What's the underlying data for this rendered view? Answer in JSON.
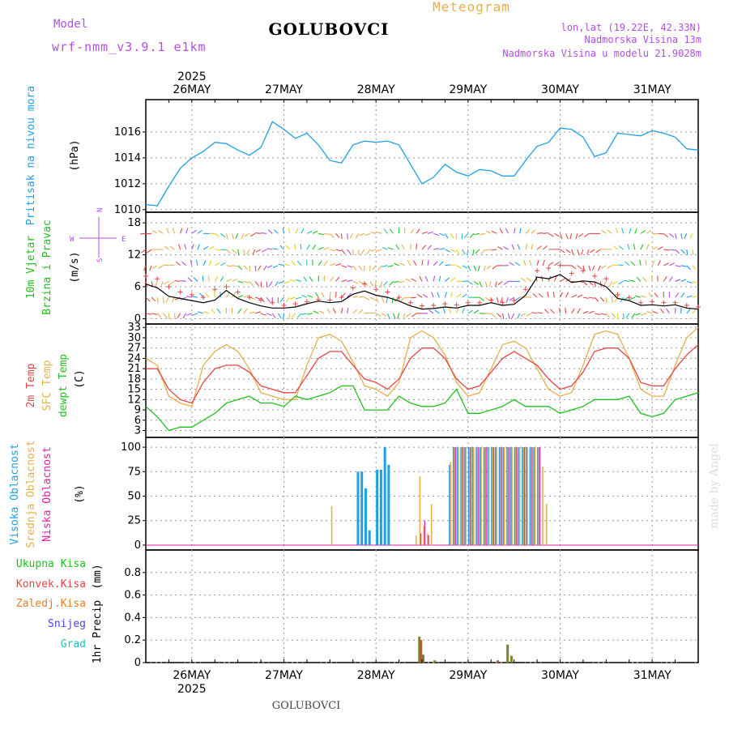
{
  "header": {
    "model_label": "Model",
    "model_name": "wrf-nmm_v3.9.1 e1km",
    "station": "GOLUBOVCI",
    "meteogram_label": "Meteogram",
    "lonlat": "lon,lat (19.22E, 42.33N)",
    "elevation": "Nadmorska Visina 13m",
    "model_elevation": "Nadmorska Visina u modelu 21.9028m",
    "footer_station": "GOLUBOVCI",
    "credit": "made by Angel"
  },
  "colors": {
    "purple": "#b44ee6",
    "gold": "#e6b04e",
    "cyan": "#1ea0e6",
    "green": "#20c020",
    "red": "#e64646",
    "orange": "#e67e22",
    "blue": "#4646e6",
    "teal": "#20c0c0",
    "magenta": "#e020a0"
  },
  "chart_data": [
    {
      "type": "line",
      "panel": "pressure",
      "ylabel_left": "Pritisak na nivou mora",
      "unit": "(hPa)",
      "ylim": [
        1009.8,
        1018.5
      ],
      "yticks": [
        1010,
        1012,
        1014,
        1016
      ],
      "time_axis": {
        "year": "2025",
        "days": [
          "26MAY",
          "27MAY",
          "28MAY",
          "29MAY",
          "30MAY",
          "31MAY"
        ],
        "range_hours": [
          -12,
          132
        ]
      },
      "series": [
        {
          "x": [
            -12,
            -9,
            -6,
            -3,
            0,
            3,
            6,
            9,
            12,
            15,
            18,
            21,
            24,
            27,
            30,
            33,
            36,
            39,
            42,
            45,
            48,
            51,
            54,
            57,
            60,
            63,
            66,
            69,
            72,
            75,
            78,
            81,
            84,
            87,
            90,
            93,
            96,
            99,
            102,
            105,
            108,
            111,
            114,
            117,
            120,
            123,
            126,
            129,
            132
          ],
          "values": [
            1010.4,
            1010.3,
            1011.8,
            1013.2,
            1014.0,
            1014.5,
            1015.2,
            1015.1,
            1014.6,
            1014.2,
            1014.8,
            1016.8,
            1016.2,
            1015.5,
            1015.9,
            1015.0,
            1013.8,
            1013.6,
            1015.0,
            1015.3,
            1015.2,
            1015.3,
            1015.0,
            1013.5,
            1012.0,
            1012.5,
            1013.5,
            1012.9,
            1012.6,
            1013.1,
            1013.0,
            1012.6,
            1012.6,
            1013.8,
            1014.9,
            1015.2,
            1016.3,
            1016.2,
            1015.6,
            1014.1,
            1014.4,
            1015.9,
            1015.8,
            1015.7,
            1016.1,
            1015.9,
            1015.6,
            1014.7,
            1014.6
          ]
        }
      ]
    },
    {
      "type": "line",
      "panel": "wind",
      "ylabel_left": [
        "10m Vjetar",
        "Brzina i Pravac"
      ],
      "unit": "(m/s)",
      "ylim": [
        -1,
        20
      ],
      "yticks": [
        0,
        6,
        12,
        18
      ],
      "direction_labels": {
        "n": "N",
        "s": "S",
        "w": "W",
        "e": "E"
      },
      "series": [
        {
          "name": "speed",
          "x": [
            -12,
            -9,
            -6,
            -3,
            0,
            3,
            6,
            9,
            12,
            15,
            18,
            21,
            24,
            27,
            30,
            33,
            36,
            39,
            42,
            45,
            48,
            51,
            54,
            57,
            60,
            63,
            66,
            69,
            72,
            75,
            78,
            81,
            84,
            87,
            90,
            93,
            96,
            99,
            102,
            105,
            108,
            111,
            114,
            117,
            120,
            123,
            126,
            129,
            132
          ],
          "values": [
            6.5,
            5.8,
            4.2,
            3.8,
            3.4,
            3.0,
            3.5,
            5.3,
            3.8,
            3.0,
            2.4,
            2.0,
            2.0,
            2.2,
            2.8,
            3.3,
            3.0,
            3.2,
            4.6,
            5.2,
            4.4,
            4.0,
            3.3,
            2.4,
            1.8,
            1.9,
            2.2,
            2.0,
            2.5,
            2.5,
            3.0,
            2.5,
            2.7,
            4.4,
            7.8,
            7.5,
            8.3,
            6.8,
            7.1,
            6.9,
            6.0,
            3.8,
            3.4,
            2.5,
            2.6,
            2.4,
            2.6,
            2.0,
            1.8
          ]
        },
        {
          "name": "gust",
          "x": [
            -12,
            -9,
            -6,
            -3,
            0,
            3,
            6,
            9,
            12,
            15,
            18,
            21,
            24,
            27,
            30,
            33,
            36,
            39,
            42,
            45,
            48,
            51,
            54,
            57,
            60,
            63,
            66,
            69,
            72,
            75,
            78,
            81,
            84,
            87,
            90,
            93,
            96,
            99,
            102,
            105,
            108,
            111,
            114,
            117,
            120,
            123,
            126,
            129,
            132
          ],
          "values": [
            8.0,
            7.5,
            6.0,
            5.0,
            4.5,
            4.0,
            5.5,
            6.0,
            5.0,
            4.0,
            3.5,
            3.0,
            2.5,
            2.8,
            3.2,
            3.6,
            3.5,
            4.0,
            5.8,
            6.5,
            5.5,
            5.0,
            4.0,
            3.0,
            2.4,
            2.5,
            2.8,
            2.6,
            3.0,
            3.0,
            3.5,
            3.0,
            3.4,
            5.5,
            9.0,
            9.5,
            10.0,
            8.5,
            9.0,
            8.0,
            7.5,
            4.5,
            4.0,
            3.0,
            3.2,
            3.0,
            3.0,
            2.5,
            2.2
          ]
        }
      ]
    },
    {
      "type": "line",
      "panel": "temperature",
      "ylabel_left": [
        "2m Temp",
        "SFC Temp",
        "dewpt Temp"
      ],
      "unit": "(C)",
      "ylim": [
        1,
        34
      ],
      "yticks": [
        3,
        6,
        9,
        12,
        15,
        18,
        21,
        24,
        27,
        30,
        33
      ],
      "series": [
        {
          "name": "2m Temp",
          "x": [
            -12,
            -9,
            -6,
            -3,
            0,
            3,
            6,
            9,
            12,
            15,
            18,
            21,
            24,
            27,
            30,
            33,
            36,
            39,
            42,
            45,
            48,
            51,
            54,
            57,
            60,
            63,
            66,
            69,
            72,
            75,
            78,
            81,
            84,
            87,
            90,
            93,
            96,
            99,
            102,
            105,
            108,
            111,
            114,
            117,
            120,
            123,
            126,
            129,
            132
          ],
          "values": [
            21,
            21,
            15,
            12,
            11,
            17,
            21,
            22,
            22,
            20,
            16,
            15,
            14,
            14,
            19,
            24,
            26,
            26,
            22,
            18,
            17,
            15,
            18,
            24,
            27,
            27,
            24,
            18,
            15,
            16,
            20,
            24,
            26,
            24,
            22,
            18,
            15,
            16,
            20,
            26,
            27,
            27,
            24,
            17,
            16,
            16,
            21,
            25,
            28
          ]
        },
        {
          "name": "SFC Temp",
          "x": [
            -12,
            -9,
            -6,
            -3,
            0,
            3,
            6,
            9,
            12,
            15,
            18,
            21,
            24,
            27,
            30,
            33,
            36,
            39,
            42,
            45,
            48,
            51,
            54,
            57,
            60,
            63,
            66,
            69,
            72,
            75,
            78,
            81,
            84,
            87,
            90,
            93,
            96,
            99,
            102,
            105,
            108,
            111,
            114,
            117,
            120,
            123,
            126,
            129,
            132
          ],
          "values": [
            24,
            22,
            13,
            11,
            10,
            22,
            26,
            28,
            26,
            21,
            14,
            13,
            12,
            12,
            22,
            30,
            31,
            29,
            23,
            16,
            15,
            13,
            17,
            30,
            32,
            30,
            25,
            17,
            13,
            14,
            21,
            28,
            29,
            27,
            21,
            15,
            13,
            14,
            22,
            31,
            32,
            31,
            24,
            15,
            13,
            13,
            22,
            30,
            33
          ]
        },
        {
          "name": "dewpt Temp",
          "x": [
            -12,
            -9,
            -6,
            -3,
            0,
            3,
            6,
            9,
            12,
            15,
            18,
            21,
            24,
            27,
            30,
            33,
            36,
            39,
            42,
            45,
            48,
            51,
            54,
            57,
            60,
            63,
            66,
            69,
            72,
            75,
            78,
            81,
            84,
            87,
            90,
            93,
            96,
            99,
            102,
            105,
            108,
            111,
            114,
            117,
            120,
            123,
            126,
            129,
            132
          ],
          "values": [
            10,
            7,
            3,
            4,
            4,
            6,
            8,
            11,
            12,
            13,
            11,
            11,
            10,
            13,
            12,
            13,
            14,
            16,
            16,
            9,
            9,
            9,
            13,
            11,
            10,
            10,
            11,
            15,
            8,
            8,
            9,
            10,
            12,
            10,
            10,
            10,
            8,
            9,
            10,
            12,
            12,
            12,
            13,
            8,
            7,
            8,
            12,
            13,
            14
          ]
        }
      ]
    },
    {
      "type": "bar",
      "panel": "cloud",
      "ylabel_left": [
        "Visoka Oblacnost",
        "Srednja Oblacnost",
        "Niska Oblacnost"
      ],
      "unit": "(%)",
      "ylim": [
        -5,
        110
      ],
      "yticks": [
        0,
        25,
        50,
        75,
        100
      ],
      "series": [
        {
          "name": "Visoka Oblacnost",
          "x": [
            43,
            44,
            45,
            46,
            48,
            49,
            50,
            51,
            67,
            68,
            69,
            70,
            71,
            72,
            73,
            74,
            75,
            76,
            77,
            78,
            79,
            80,
            81,
            82,
            83,
            84,
            85,
            86,
            87,
            88,
            89,
            90
          ],
          "values": [
            75,
            75,
            58,
            15,
            77,
            77,
            100,
            82,
            82,
            100,
            100,
            100,
            100,
            100,
            100,
            100,
            100,
            100,
            100,
            100,
            100,
            100,
            100,
            100,
            100,
            100,
            100,
            100,
            100,
            100,
            100,
            100
          ]
        },
        {
          "name": "Srednja Oblacnost",
          "x": [
            36,
            58,
            59,
            60,
            61,
            62,
            67,
            68,
            69,
            70,
            71,
            72,
            73,
            74,
            75,
            76,
            77,
            78,
            79,
            80,
            81,
            82,
            83,
            84,
            85,
            86,
            87,
            88,
            89,
            90,
            91,
            92
          ],
          "values": [
            40,
            10,
            70,
            20,
            12,
            42,
            85,
            100,
            100,
            100,
            100,
            100,
            100,
            100,
            100,
            100,
            100,
            100,
            100,
            100,
            100,
            100,
            100,
            100,
            100,
            100,
            100,
            100,
            100,
            100,
            80,
            42
          ]
        },
        {
          "name": "Niska Oblacnost",
          "x": [
            59,
            60,
            61,
            68,
            70,
            72,
            74,
            76,
            78,
            80,
            82,
            84,
            86,
            88,
            90
          ],
          "values": [
            12,
            25,
            10,
            100,
            100,
            100,
            100,
            100,
            100,
            100,
            100,
            100,
            100,
            100,
            100
          ]
        }
      ]
    },
    {
      "type": "bar",
      "panel": "precip",
      "ylabel_left": "1hr Precip",
      "unit": "(mm)",
      "ylim": [
        0,
        1.0
      ],
      "yticks": [
        0,
        0.2,
        0.4,
        0.6,
        0.8
      ],
      "legend": [
        "Ukupna Kisa",
        "Konvek.Kisa",
        "Zaledj.Kisa",
        "Snijeg",
        "Grad"
      ],
      "series": [
        {
          "name": "Ukupna Kisa",
          "x": [
            59,
            60,
            63,
            82,
            83
          ],
          "values": [
            0.23,
            0.07,
            0.02,
            0.16,
            0.06
          ]
        },
        {
          "name": "Konvek.Kisa",
          "x": [
            59,
            79
          ],
          "values": [
            0.2,
            0.02
          ]
        }
      ]
    }
  ]
}
